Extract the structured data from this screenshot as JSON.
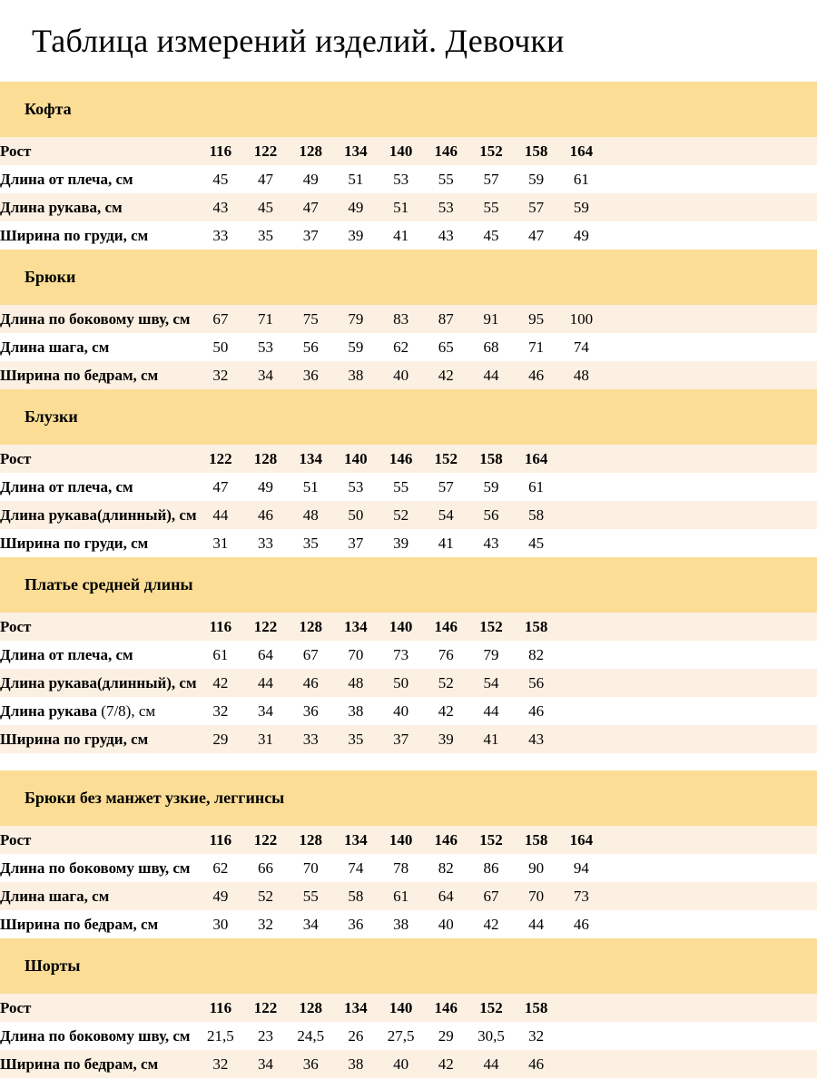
{
  "page": {
    "title": "Таблица измерений изделий. Девочки"
  },
  "colors": {
    "section_band": "#FBDD96",
    "row_alt": "#FCF0E2",
    "row_white": "#FFFFFF",
    "text": "#000000"
  },
  "sections": [
    {
      "id": "kofta",
      "title": "Кофта",
      "rows": [
        {
          "label": "Рост",
          "label_suffix": "",
          "header_row": true,
          "values": [
            "116",
            "122",
            "128",
            "134",
            "140",
            "146",
            "152",
            "158",
            "164"
          ]
        },
        {
          "label": "Длина от плеча, см",
          "label_suffix": "",
          "header_row": false,
          "values": [
            "45",
            "47",
            "49",
            "51",
            "53",
            "55",
            "57",
            "59",
            "61"
          ]
        },
        {
          "label": "Длина рукава, см",
          "label_suffix": "",
          "header_row": false,
          "values": [
            "43",
            "45",
            "47",
            "49",
            "51",
            "53",
            "55",
            "57",
            "59"
          ]
        },
        {
          "label": "Ширина по груди, см",
          "label_suffix": "",
          "header_row": false,
          "values": [
            "33",
            "35",
            "37",
            "39",
            "41",
            "43",
            "45",
            "47",
            "49"
          ]
        }
      ]
    },
    {
      "id": "bryuki",
      "title": "Брюки",
      "rows": [
        {
          "label": "Длина по боковому шву, см",
          "label_suffix": "",
          "header_row": false,
          "values": [
            "67",
            "71",
            "75",
            "79",
            "83",
            "87",
            "91",
            "95",
            "100"
          ]
        },
        {
          "label": "Длина шага, см",
          "label_suffix": "",
          "header_row": false,
          "values": [
            "50",
            "53",
            "56",
            "59",
            "62",
            "65",
            "68",
            "71",
            "74"
          ]
        },
        {
          "label": "Ширина по бедрам, см",
          "label_suffix": "",
          "header_row": false,
          "values": [
            "32",
            "34",
            "36",
            "38",
            "40",
            "42",
            "44",
            "46",
            "48"
          ]
        }
      ]
    },
    {
      "id": "bluzki",
      "title": "Блузки",
      "rows": [
        {
          "label": "Рост",
          "label_suffix": "",
          "header_row": true,
          "values": [
            "122",
            "128",
            "134",
            "140",
            "146",
            "152",
            "158",
            "164"
          ]
        },
        {
          "label": "Длина от плеча, см",
          "label_suffix": "",
          "header_row": false,
          "values": [
            "47",
            "49",
            "51",
            "53",
            "55",
            "57",
            "59",
            "61"
          ]
        },
        {
          "label": "Длина рукава(длинный), см",
          "label_suffix": "",
          "header_row": false,
          "values": [
            "44",
            "46",
            "48",
            "50",
            "52",
            "54",
            "56",
            "58"
          ]
        },
        {
          "label": "Ширина по груди, см",
          "label_suffix": "",
          "header_row": false,
          "values": [
            "31",
            "33",
            "35",
            "37",
            "39",
            "41",
            "43",
            "45"
          ]
        }
      ]
    },
    {
      "id": "plate-sredney-dliny",
      "title": "Платье средней длины",
      "rows": [
        {
          "label": "Рост",
          "label_suffix": "",
          "header_row": true,
          "values": [
            "116",
            "122",
            "128",
            "134",
            "140",
            "146",
            "152",
            "158"
          ]
        },
        {
          "label": "Длина от плеча, см",
          "label_suffix": "",
          "header_row": false,
          "values": [
            "61",
            "64",
            "67",
            "70",
            "73",
            "76",
            "79",
            "82"
          ]
        },
        {
          "label": "Длина рукава(длинный), см",
          "label_suffix": "",
          "header_row": false,
          "values": [
            "42",
            "44",
            "46",
            "48",
            "50",
            "52",
            "54",
            "56"
          ]
        },
        {
          "label": "Длина рукава",
          "label_suffix": " (7/8), см",
          "header_row": false,
          "values": [
            "32",
            "34",
            "36",
            "38",
            "40",
            "42",
            "44",
            "46"
          ]
        },
        {
          "label": "Ширина по груди, см",
          "label_suffix": "",
          "header_row": false,
          "values": [
            "29",
            "31",
            "33",
            "35",
            "37",
            "39",
            "41",
            "43"
          ]
        }
      ]
    },
    {
      "id": "bryuki-legginsy",
      "title": "Брюки без манжет узкие, леггинсы",
      "gap_before": true,
      "rows": [
        {
          "label": "Рост",
          "label_suffix": "",
          "header_row": true,
          "values": [
            "116",
            "122",
            "128",
            "134",
            "140",
            "146",
            "152",
            "158",
            "164"
          ]
        },
        {
          "label": "Длина по боковому шву, см",
          "label_suffix": "",
          "header_row": false,
          "values": [
            "62",
            "66",
            "70",
            "74",
            "78",
            "82",
            "86",
            "90",
            "94"
          ]
        },
        {
          "label": "Длина шага, см",
          "label_suffix": "",
          "header_row": false,
          "values": [
            "49",
            "52",
            "55",
            "58",
            "61",
            "64",
            "67",
            "70",
            "73"
          ]
        },
        {
          "label": "Ширина по бедрам, см",
          "label_suffix": "",
          "header_row": false,
          "values": [
            "30",
            "32",
            "34",
            "36",
            "38",
            "40",
            "42",
            "44",
            "46"
          ]
        }
      ]
    },
    {
      "id": "shorty",
      "title": "Шорты",
      "rows": [
        {
          "label": "Рост",
          "label_suffix": "",
          "header_row": true,
          "values": [
            "116",
            "122",
            "128",
            "134",
            "140",
            "146",
            "152",
            "158"
          ]
        },
        {
          "label": "Длина по боковому шву, см",
          "label_suffix": "",
          "header_row": false,
          "values": [
            "21,5",
            "23",
            "24,5",
            "26",
            "27,5",
            "29",
            "30,5",
            "32"
          ]
        },
        {
          "label": "Ширина по бедрам, см",
          "label_suffix": "",
          "header_row": false,
          "values": [
            "32",
            "34",
            "36",
            "38",
            "40",
            "42",
            "44",
            "46"
          ]
        }
      ]
    }
  ]
}
